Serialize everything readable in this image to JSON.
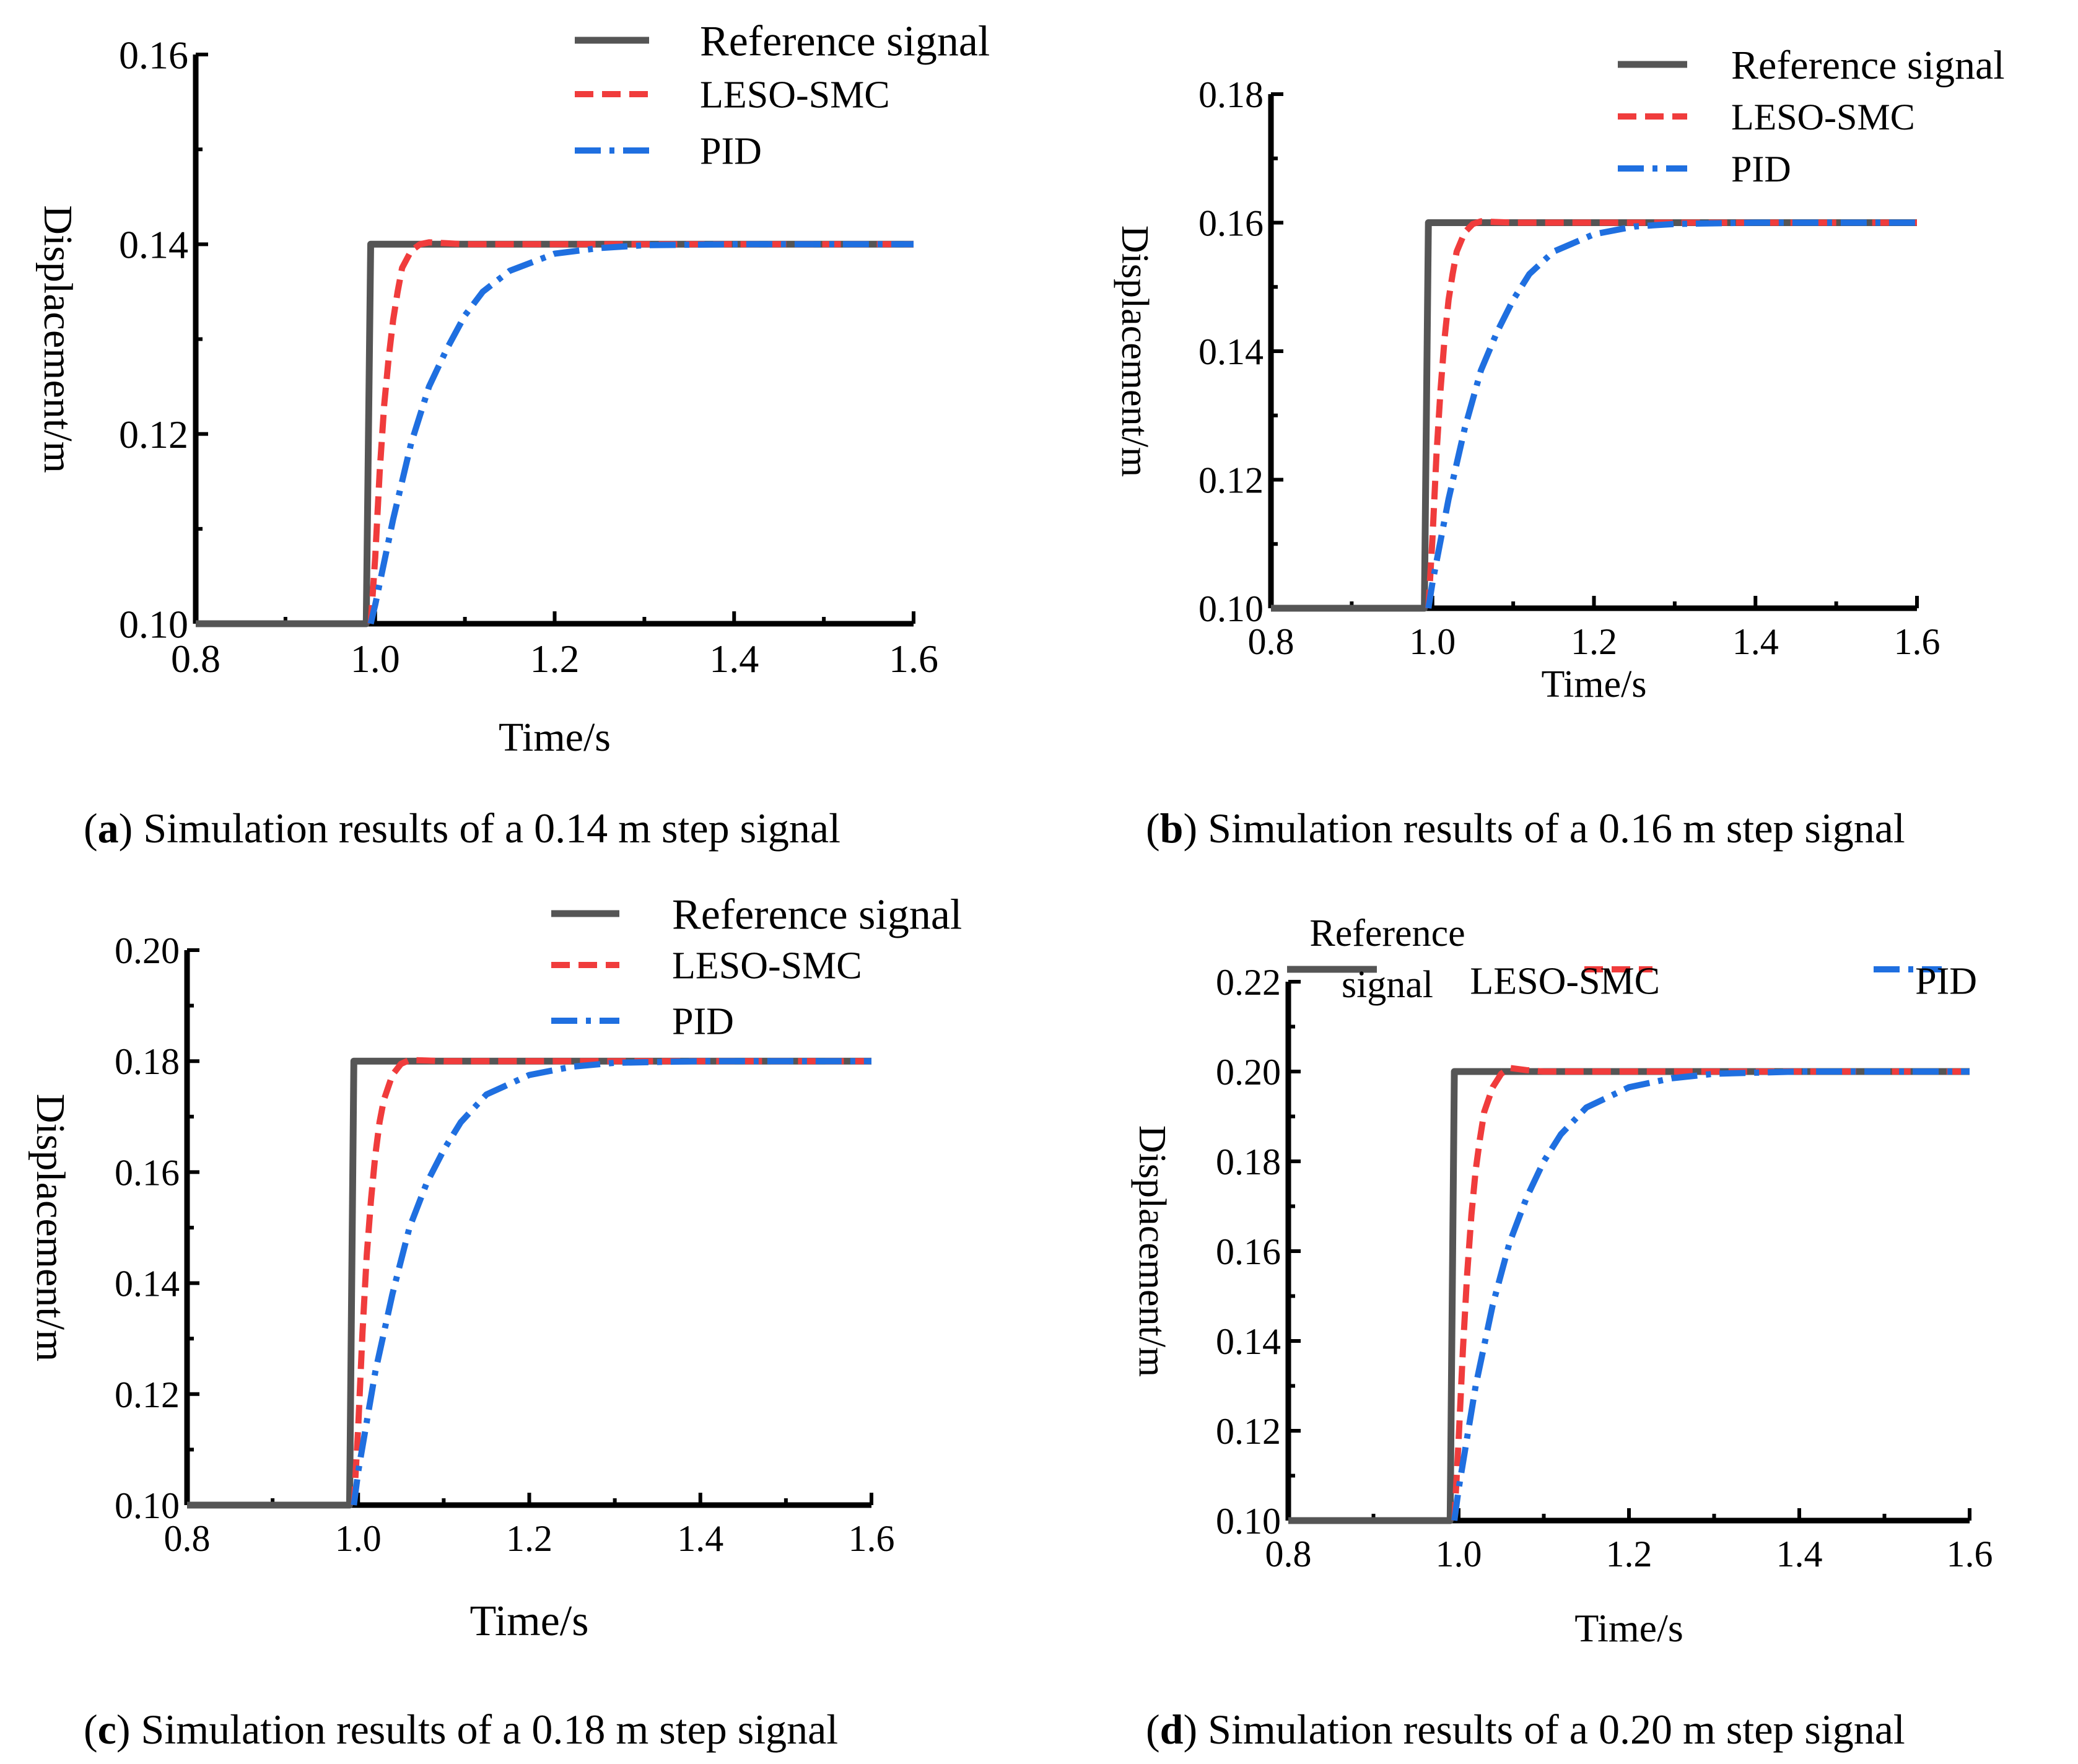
{
  "chart_data": [
    {
      "type": "line",
      "panel": "a",
      "xlabel": "Time/s",
      "ylabel": "Displacement/m",
      "xlim": [
        0.8,
        1.6
      ],
      "ylim": [
        0.1,
        0.16
      ],
      "xticks": [
        "0.8",
        "1.0",
        "1.2",
        "1.4",
        "1.6"
      ],
      "yticks": [
        "0.10",
        "0.12",
        "0.14",
        "0.16"
      ],
      "legend_position": "top-right",
      "series": [
        {
          "name": "Reference signal",
          "color": "#555555",
          "style": "solid",
          "x": [
            0.8,
            0.99,
            0.995,
            1.6
          ],
          "y": [
            0.1,
            0.1,
            0.14,
            0.14
          ]
        },
        {
          "name": "LESO-SMC",
          "color": "#f03c3c",
          "style": "dashed",
          "x": [
            0.995,
            1.0,
            1.005,
            1.01,
            1.015,
            1.02,
            1.025,
            1.03,
            1.04,
            1.05,
            1.06,
            1.08,
            1.1,
            1.6
          ],
          "y": [
            0.1,
            0.107,
            0.116,
            0.123,
            0.128,
            0.132,
            0.135,
            0.1375,
            0.1393,
            0.14,
            0.1402,
            0.1401,
            0.14,
            0.14
          ]
        },
        {
          "name": "PID",
          "color": "#1f6fe0",
          "style": "dashdot",
          "x": [
            0.995,
            1.0,
            1.02,
            1.04,
            1.06,
            1.08,
            1.1,
            1.12,
            1.15,
            1.2,
            1.25,
            1.3,
            1.4,
            1.6
          ],
          "y": [
            0.1,
            0.102,
            0.111,
            0.119,
            0.125,
            0.129,
            0.1325,
            0.135,
            0.1372,
            0.139,
            0.1396,
            0.1399,
            0.14,
            0.14
          ]
        }
      ]
    },
    {
      "type": "line",
      "panel": "b",
      "xlabel": "Time/s",
      "ylabel": "Displacement/m",
      "xlim": [
        0.8,
        1.6
      ],
      "ylim": [
        0.1,
        0.18
      ],
      "xticks": [
        "0.8",
        "1.0",
        "1.2",
        "1.4",
        "1.6"
      ],
      "yticks": [
        "0.10",
        "0.12",
        "0.14",
        "0.16",
        "0.18"
      ],
      "legend_position": "top-right",
      "series": [
        {
          "name": "Reference signal",
          "color": "#555555",
          "style": "solid",
          "x": [
            0.8,
            0.99,
            0.995,
            1.6
          ],
          "y": [
            0.1,
            0.1,
            0.16,
            0.16
          ]
        },
        {
          "name": "LESO-SMC",
          "color": "#f03c3c",
          "style": "dashed",
          "x": [
            0.995,
            1.0,
            1.005,
            1.01,
            1.015,
            1.02,
            1.025,
            1.03,
            1.04,
            1.05,
            1.06,
            1.08,
            1.1,
            1.6
          ],
          "y": [
            0.1,
            0.111,
            0.124,
            0.134,
            0.142,
            0.148,
            0.152,
            0.1555,
            0.1585,
            0.1598,
            0.1602,
            0.1601,
            0.16,
            0.16
          ]
        },
        {
          "name": "PID",
          "color": "#1f6fe0",
          "style": "dashdot",
          "x": [
            0.995,
            1.0,
            1.02,
            1.04,
            1.06,
            1.08,
            1.1,
            1.12,
            1.15,
            1.2,
            1.25,
            1.3,
            1.4,
            1.6
          ],
          "y": [
            0.1,
            0.104,
            0.117,
            0.128,
            0.137,
            0.143,
            0.148,
            0.152,
            0.1555,
            0.1582,
            0.1594,
            0.1598,
            0.16,
            0.16
          ]
        }
      ]
    },
    {
      "type": "line",
      "panel": "c",
      "xlabel": "Time/s",
      "ylabel": "Displacement/m",
      "xlim": [
        0.8,
        1.6
      ],
      "ylim": [
        0.1,
        0.2
      ],
      "xticks": [
        "0.8",
        "1.0",
        "1.2",
        "1.4",
        "1.6"
      ],
      "yticks": [
        "0.10",
        "0.12",
        "0.14",
        "0.16",
        "0.18",
        "0.20"
      ],
      "legend_position": "top-right",
      "series": [
        {
          "name": "Reference signal",
          "color": "#555555",
          "style": "solid",
          "x": [
            0.8,
            0.99,
            0.995,
            1.6
          ],
          "y": [
            0.1,
            0.1,
            0.18,
            0.18
          ]
        },
        {
          "name": "LESO-SMC",
          "color": "#f03c3c",
          "style": "dashed",
          "x": [
            0.995,
            1.0,
            1.005,
            1.01,
            1.015,
            1.02,
            1.025,
            1.03,
            1.04,
            1.05,
            1.06,
            1.08,
            1.1,
            1.6
          ],
          "y": [
            0.1,
            0.114,
            0.131,
            0.145,
            0.155,
            0.163,
            0.169,
            0.173,
            0.1775,
            0.1795,
            0.1802,
            0.1801,
            0.18,
            0.18
          ]
        },
        {
          "name": "PID",
          "color": "#1f6fe0",
          "style": "dashdot",
          "x": [
            0.995,
            1.0,
            1.02,
            1.04,
            1.06,
            1.08,
            1.1,
            1.12,
            1.15,
            1.2,
            1.25,
            1.3,
            1.4,
            1.6
          ],
          "y": [
            0.1,
            0.106,
            0.124,
            0.138,
            0.15,
            0.158,
            0.164,
            0.169,
            0.174,
            0.1775,
            0.179,
            0.1797,
            0.18,
            0.18
          ]
        }
      ]
    },
    {
      "type": "line",
      "panel": "d",
      "xlabel": "Time/s",
      "ylabel": "Displacement/m",
      "xlim": [
        0.8,
        1.6
      ],
      "ylim": [
        0.1,
        0.22
      ],
      "xticks": [
        "0.8",
        "1.0",
        "1.2",
        "1.4",
        "1.6"
      ],
      "yticks": [
        "0.10",
        "0.12",
        "0.14",
        "0.16",
        "0.18",
        "0.20",
        "0.22"
      ],
      "legend_position": "top",
      "series": [
        {
          "name": "Reference signal",
          "color": "#555555",
          "style": "solid",
          "x": [
            0.8,
            0.99,
            0.995,
            1.6
          ],
          "y": [
            0.1,
            0.1,
            0.2,
            0.2
          ]
        },
        {
          "name": "LESO-SMC",
          "color": "#f03c3c",
          "style": "dashed",
          "x": [
            0.995,
            1.0,
            1.005,
            1.01,
            1.015,
            1.02,
            1.025,
            1.03,
            1.04,
            1.05,
            1.06,
            1.08,
            1.1,
            1.6
          ],
          "y": [
            0.1,
            0.118,
            0.138,
            0.155,
            0.168,
            0.178,
            0.185,
            0.191,
            0.1965,
            0.1995,
            0.2008,
            0.2003,
            0.2,
            0.2
          ]
        },
        {
          "name": "PID",
          "color": "#1f6fe0",
          "style": "dashdot",
          "x": [
            0.995,
            1.0,
            1.02,
            1.04,
            1.06,
            1.08,
            1.1,
            1.12,
            1.15,
            1.2,
            1.25,
            1.3,
            1.4,
            1.6
          ],
          "y": [
            0.1,
            0.107,
            0.13,
            0.148,
            0.162,
            0.172,
            0.18,
            0.186,
            0.192,
            0.1965,
            0.1985,
            0.1995,
            0.2,
            0.2
          ]
        }
      ]
    }
  ],
  "captions": [
    {
      "letter": "a",
      "text": " Simulation results of a 0.14 m step signal"
    },
    {
      "letter": "b",
      "text": " Simulation results of a 0.16 m step signal"
    },
    {
      "letter": "c",
      "text": " Simulation results of a 0.18 m step signal"
    },
    {
      "letter": "d",
      "text": " Simulation results of a 0.20 m step signal"
    }
  ]
}
